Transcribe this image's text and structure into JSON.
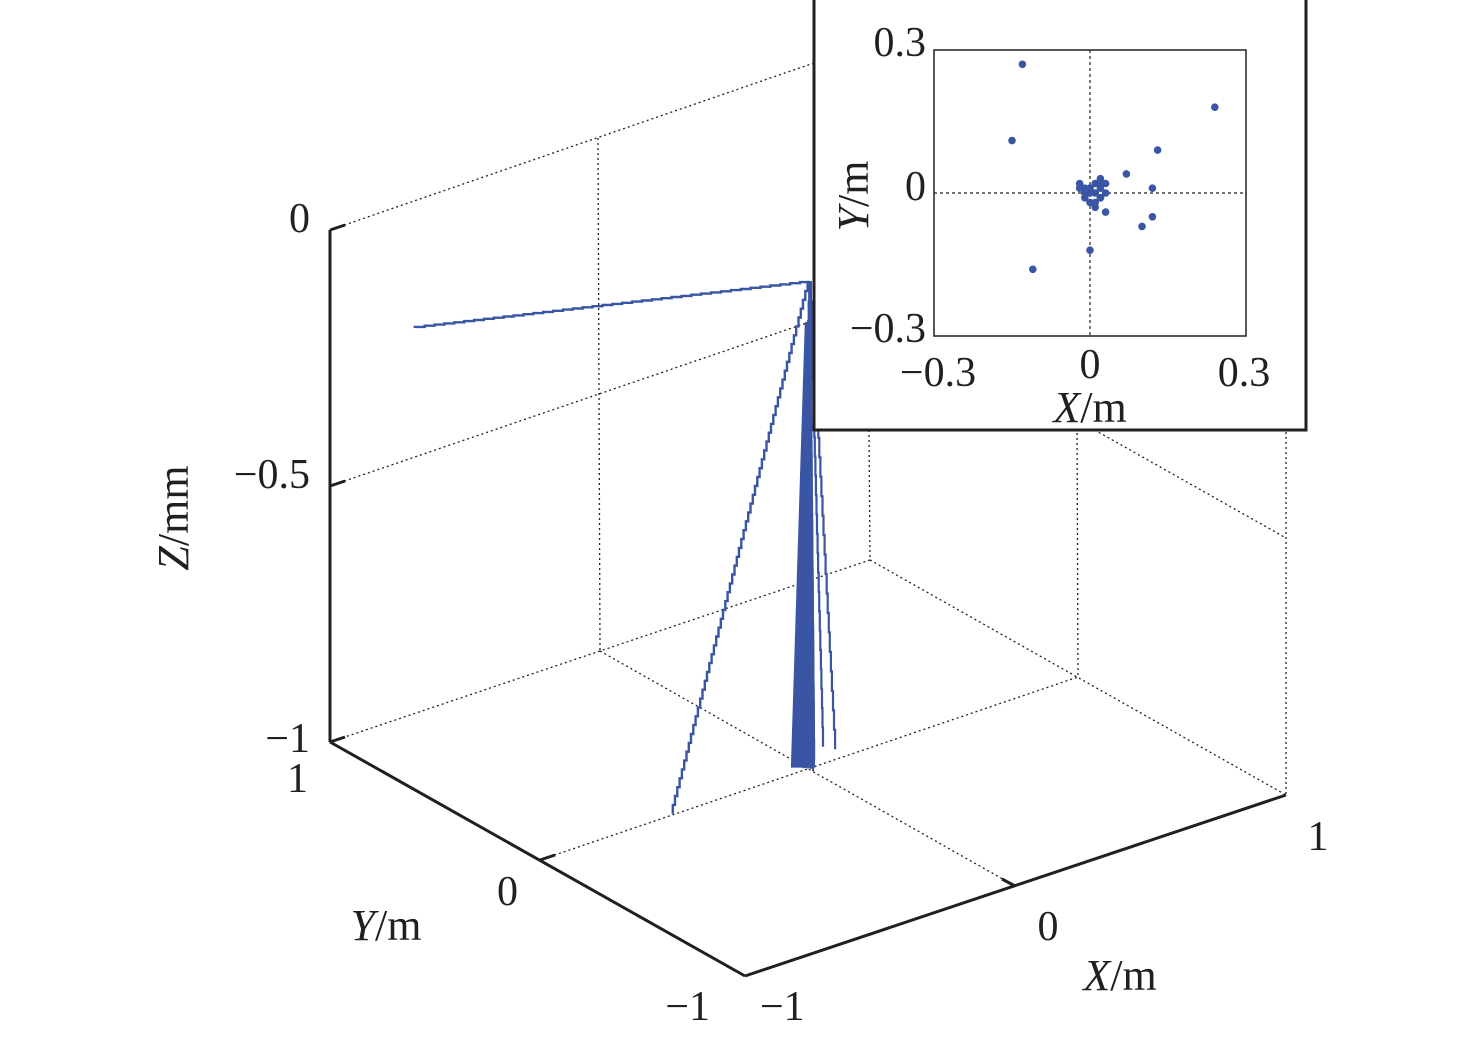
{
  "chart_data": [
    {
      "type": "line",
      "title": "",
      "projection": "3d",
      "grid": true,
      "line_color": "#3a55a4",
      "axis_color": "#231f20",
      "xlabel": {
        "var": "X",
        "unit": "/m"
      },
      "ylabel": {
        "var": "Y",
        "unit": "/m"
      },
      "zlabel": {
        "var": "Z",
        "unit": "/mm"
      },
      "xlim": [
        -1,
        1
      ],
      "ylim": [
        -1,
        1
      ],
      "zlim": [
        -1,
        0
      ],
      "xticks": [
        "−1",
        "0",
        "1"
      ],
      "yticks": [
        "−1",
        "0",
        "1"
      ],
      "zticks": [
        "−1",
        "−0.5",
        "0"
      ],
      "series": [
        {
          "description_values": "trajectories descend from top vertex near (0, 0, 0) to bottom points",
          "apex": [
            0.0,
            0.0,
            -0.05
          ]
        },
        {
          "values": [
            [
              0.0,
              0.0,
              -0.05
            ],
            [
              -1.0,
              0.6,
              -0.1
            ]
          ]
        },
        {
          "values": [
            [
              0.0,
              0.0,
              -0.05
            ],
            [
              -0.5,
              0.0,
              -1.0
            ]
          ]
        }
      ]
    },
    {
      "type": "scatter",
      "title": "",
      "inset": true,
      "grid": false,
      "crosshair_at_zero": true,
      "marker_color": "#3a55a4",
      "xlabel": {
        "var": "X",
        "unit": "/m"
      },
      "ylabel": {
        "var": "Y",
        "unit": "/m"
      },
      "xlim": [
        -0.3,
        0.3
      ],
      "ylim": [
        -0.3,
        0.3
      ],
      "xticks": [
        "−0.3",
        "0",
        "0.3"
      ],
      "yticks": [
        "−0.3",
        "0",
        "0.3"
      ],
      "x": [
        -0.13,
        0.24,
        -0.15,
        0.13,
        -0.11,
        0.07,
        0.12,
        0.12,
        0.1,
        0.0,
        0.0,
        0.03,
        0.02,
        0.01,
        0.0,
        -0.01,
        -0.02,
        0.02,
        0.01,
        0.03,
        -0.01,
        0.0,
        0.02,
        0.03,
        0.01,
        -0.02,
        0.0,
        0.01,
        0.02,
        -0.01,
        0.02
      ],
      "y": [
        0.27,
        0.18,
        0.11,
        0.09,
        -0.16,
        0.04,
        0.01,
        -0.05,
        -0.07,
        -0.12,
        0.0,
        -0.04,
        0.01,
        0.02,
        0.01,
        0.0,
        0.01,
        -0.01,
        -0.02,
        0.02,
        -0.01,
        -0.02,
        0.03,
        0.0,
        -0.03,
        0.02,
        0.01,
        0.0,
        -0.01,
        0.01,
        0.02
      ]
    }
  ]
}
